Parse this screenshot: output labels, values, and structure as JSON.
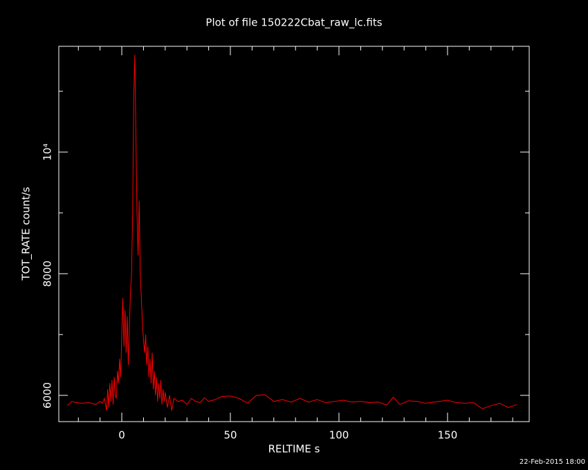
{
  "chart_data": {
    "type": "line",
    "title": "Plot of file 150222Cbat_raw_lc.fits",
    "x_label": "RELTIME  s",
    "y_label": "TOT_RATE  count/s",
    "timestamp": "22-Feb-2015 18:00",
    "xlim": [
      -29,
      187.6
    ],
    "ylim": [
      5568,
      11739
    ],
    "xticks": [
      0,
      50,
      100,
      150
    ],
    "xminorticks": [
      -20,
      -10,
      10,
      20,
      30,
      40,
      60,
      70,
      80,
      90,
      110,
      120,
      130,
      140,
      160,
      170,
      180
    ],
    "yticks": [
      6000,
      8000,
      {
        "value": 10000,
        "label": "10⁴"
      }
    ],
    "yminorticks": [
      7000,
      9000,
      11000
    ],
    "background": "#000000",
    "axis_color": "#ffffff",
    "series": [
      {
        "name": "TOT_RATE",
        "color": "#ff0000",
        "x": [
          -25,
          -23,
          -21,
          -18,
          -15,
          -12,
          -10,
          -9,
          -8,
          -7,
          -6.5,
          -6,
          -5.5,
          -5,
          -4.5,
          -4,
          -3.5,
          -3,
          -2.5,
          -2,
          -1.5,
          -1,
          -0.5,
          0,
          0.5,
          1,
          1.5,
          2,
          2.5,
          3,
          3.5,
          4,
          4.5,
          5,
          5.5,
          6,
          6.5,
          7,
          7.5,
          8,
          8.5,
          9,
          9.5,
          10,
          10.5,
          11,
          11.5,
          12,
          12.5,
          13,
          13.5,
          14,
          14.5,
          15,
          15.5,
          16,
          16.5,
          17,
          17.5,
          18,
          18.5,
          19,
          19.5,
          20,
          21,
          22,
          23,
          24,
          26,
          28,
          30,
          32,
          34,
          36,
          38,
          40,
          43,
          46,
          50,
          54,
          58,
          62,
          66,
          70,
          74,
          78,
          82,
          86,
          90,
          94,
          98,
          102,
          106,
          110,
          114,
          118,
          122,
          125,
          128,
          132,
          136,
          140,
          144,
          150,
          154,
          158,
          162,
          166,
          170,
          174,
          178,
          182
        ],
        "values": [
          5830,
          5900,
          5880,
          5870,
          5880,
          5850,
          5900,
          5870,
          5950,
          5750,
          6100,
          5800,
          6200,
          5900,
          6250,
          5850,
          6300,
          6000,
          5950,
          6400,
          6200,
          6600,
          6300,
          7000,
          7600,
          6800,
          7400,
          6700,
          7300,
          6500,
          7100,
          7700,
          8000,
          9000,
          10900,
          11600,
          10300,
          9000,
          8300,
          9200,
          8000,
          7600,
          7200,
          6900,
          6700,
          7000,
          6500,
          6800,
          6300,
          6600,
          6200,
          6700,
          6100,
          6400,
          6000,
          6300,
          5900,
          6200,
          5950,
          6250,
          5850,
          6100,
          5900,
          6050,
          5800,
          6000,
          5750,
          5950,
          5900,
          5920,
          5850,
          5950,
          5900,
          5880,
          5960,
          5900,
          5930,
          5980,
          5990,
          5950,
          5870,
          6000,
          6010,
          5900,
          5930,
          5890,
          5950,
          5890,
          5930,
          5880,
          5900,
          5920,
          5890,
          5900,
          5880,
          5890,
          5840,
          5970,
          5850,
          5910,
          5900,
          5870,
          5890,
          5920,
          5880,
          5870,
          5880,
          5780,
          5830,
          5870,
          5800,
          5850
        ]
      }
    ]
  }
}
